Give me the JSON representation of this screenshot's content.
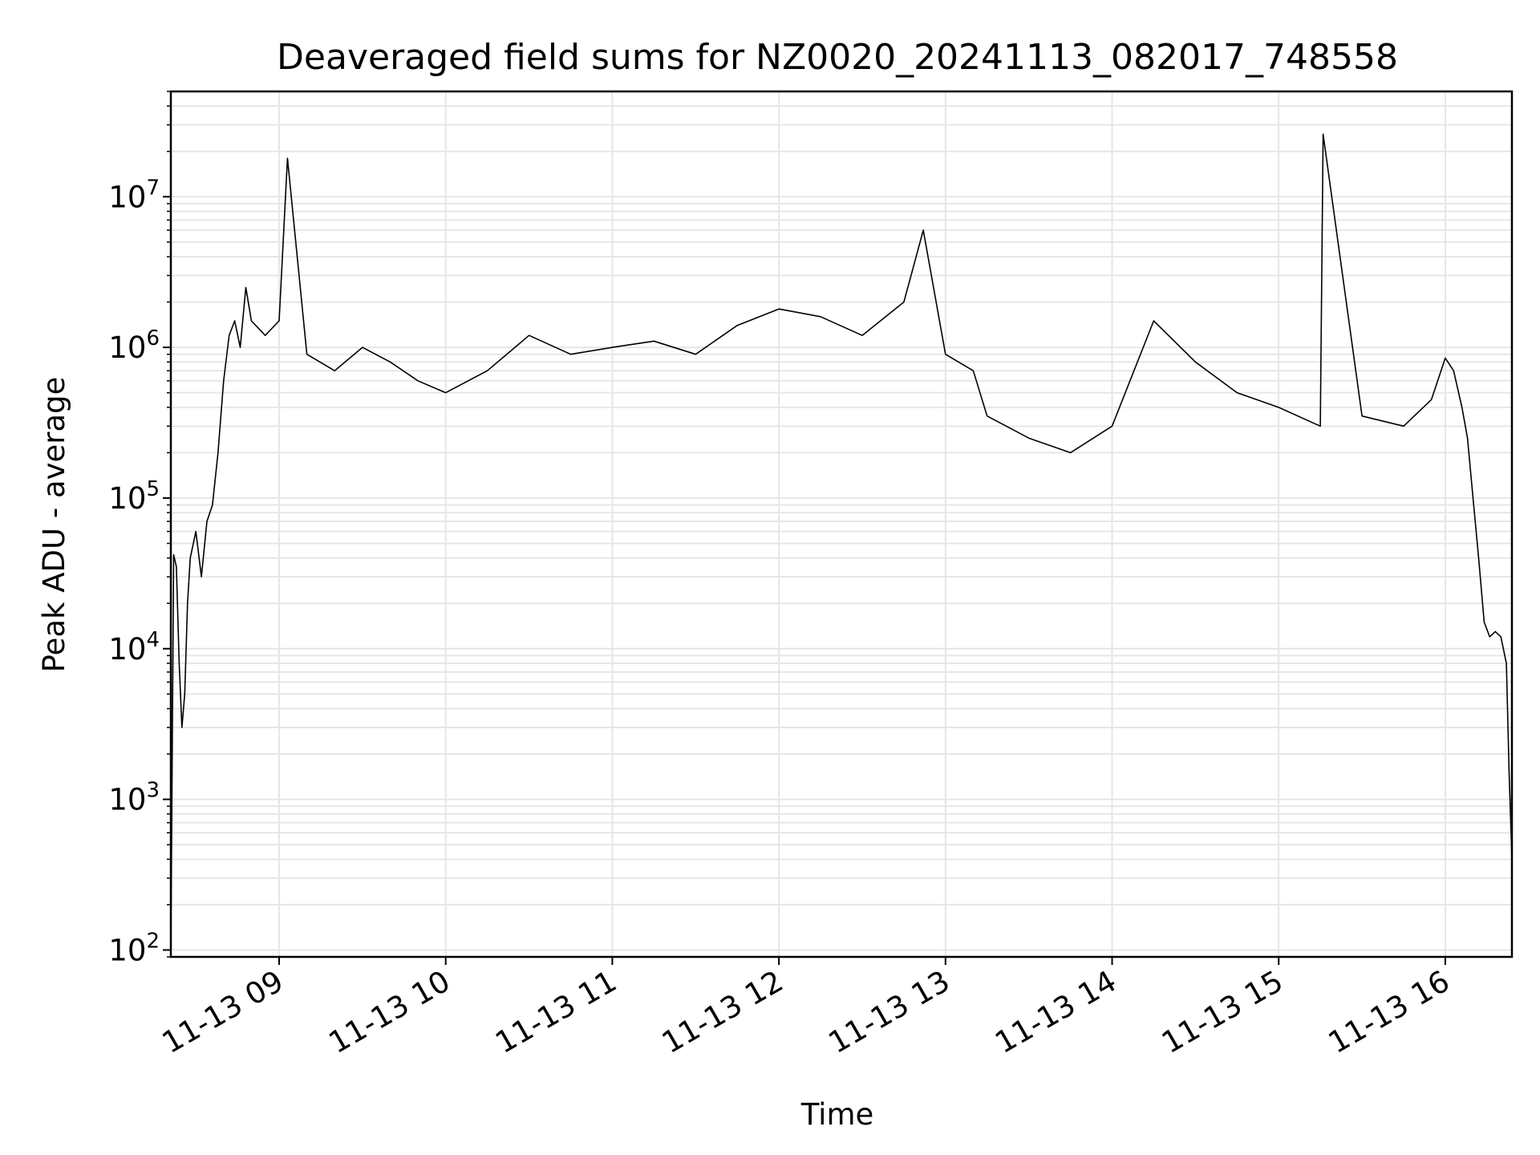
{
  "chart_data": {
    "type": "line",
    "title": "Deaveraged field sums for NZ0020_20241113_082017_748558",
    "xlabel": "Time",
    "ylabel": "Peak ADU - average",
    "yscale": "log",
    "grid": true,
    "line_color": "#000000",
    "grid_color": "#e6e6e6",
    "xlim": [
      "2024-11-13 08:21",
      "2024-11-13 16:24"
    ],
    "ylim": [
      90,
      50000000
    ],
    "x_ticks": [
      {
        "value": "2024-11-13 09:00",
        "label": "11-13 09"
      },
      {
        "value": "2024-11-13 10:00",
        "label": "11-13 10"
      },
      {
        "value": "2024-11-13 11:00",
        "label": "11-13 11"
      },
      {
        "value": "2024-11-13 12:00",
        "label": "11-13 12"
      },
      {
        "value": "2024-11-13 13:00",
        "label": "11-13 13"
      },
      {
        "value": "2024-11-13 14:00",
        "label": "11-13 14"
      },
      {
        "value": "2024-11-13 15:00",
        "label": "11-13 15"
      },
      {
        "value": "2024-11-13 16:00",
        "label": "11-13 16"
      }
    ],
    "y_ticks": [
      {
        "value": 100,
        "base": "10",
        "exp": "2"
      },
      {
        "value": 1000,
        "base": "10",
        "exp": "3"
      },
      {
        "value": 10000,
        "base": "10",
        "exp": "4"
      },
      {
        "value": 100000,
        "base": "10",
        "exp": "5"
      },
      {
        "value": 1000000,
        "base": "10",
        "exp": "6"
      },
      {
        "value": 10000000,
        "base": "10",
        "exp": "7"
      }
    ],
    "series": [
      {
        "name": "",
        "x": [
          "2024-11-13 08:21",
          "2024-11-13 08:22",
          "2024-11-13 08:23",
          "2024-11-13 08:24",
          "2024-11-13 08:25",
          "2024-11-13 08:26",
          "2024-11-13 08:27",
          "2024-11-13 08:28",
          "2024-11-13 08:30",
          "2024-11-13 08:32",
          "2024-11-13 08:34",
          "2024-11-13 08:36",
          "2024-11-13 08:38",
          "2024-11-13 08:40",
          "2024-11-13 08:42",
          "2024-11-13 08:44",
          "2024-11-13 08:46",
          "2024-11-13 08:48",
          "2024-11-13 08:50",
          "2024-11-13 08:55",
          "2024-11-13 09:00",
          "2024-11-13 09:03",
          "2024-11-13 09:10",
          "2024-11-13 09:20",
          "2024-11-13 09:30",
          "2024-11-13 09:40",
          "2024-11-13 09:50",
          "2024-11-13 10:00",
          "2024-11-13 10:15",
          "2024-11-13 10:30",
          "2024-11-13 10:45",
          "2024-11-13 11:00",
          "2024-11-13 11:15",
          "2024-11-13 11:30",
          "2024-11-13 11:45",
          "2024-11-13 12:00",
          "2024-11-13 12:15",
          "2024-11-13 12:30",
          "2024-11-13 12:45",
          "2024-11-13 12:52",
          "2024-11-13 13:00",
          "2024-11-13 13:10",
          "2024-11-13 13:15",
          "2024-11-13 13:30",
          "2024-11-13 13:45",
          "2024-11-13 14:00",
          "2024-11-13 14:15",
          "2024-11-13 14:30",
          "2024-11-13 14:45",
          "2024-11-13 15:00",
          "2024-11-13 15:15",
          "2024-11-13 15:16",
          "2024-11-13 15:30",
          "2024-11-13 15:45",
          "2024-11-13 15:55",
          "2024-11-13 16:00",
          "2024-11-13 16:03",
          "2024-11-13 16:06",
          "2024-11-13 16:08",
          "2024-11-13 16:10",
          "2024-11-13 16:12",
          "2024-11-13 16:14",
          "2024-11-13 16:16",
          "2024-11-13 16:18",
          "2024-11-13 16:20",
          "2024-11-13 16:22",
          "2024-11-13 16:23",
          "2024-11-13 16:24"
        ],
        "y": [
          100,
          42000,
          35000,
          8000,
          3000,
          5000,
          20000,
          40000,
          60000,
          30000,
          70000,
          90000,
          200000,
          600000,
          1200000,
          1500000,
          1000000,
          2500000,
          1500000,
          1200000,
          1500000,
          18000000,
          900000,
          700000,
          1000000,
          800000,
          600000,
          500000,
          700000,
          1200000,
          900000,
          1000000,
          1100000,
          900000,
          1400000,
          1800000,
          1600000,
          1200000,
          2000000,
          6000000,
          900000,
          700000,
          350000,
          250000,
          200000,
          300000,
          1500000,
          800000,
          500000,
          400000,
          300000,
          26000000,
          350000,
          300000,
          450000,
          850000,
          700000,
          400000,
          250000,
          100000,
          40000,
          15000,
          12000,
          13000,
          12000,
          8000,
          1500,
          400
        ]
      }
    ]
  }
}
